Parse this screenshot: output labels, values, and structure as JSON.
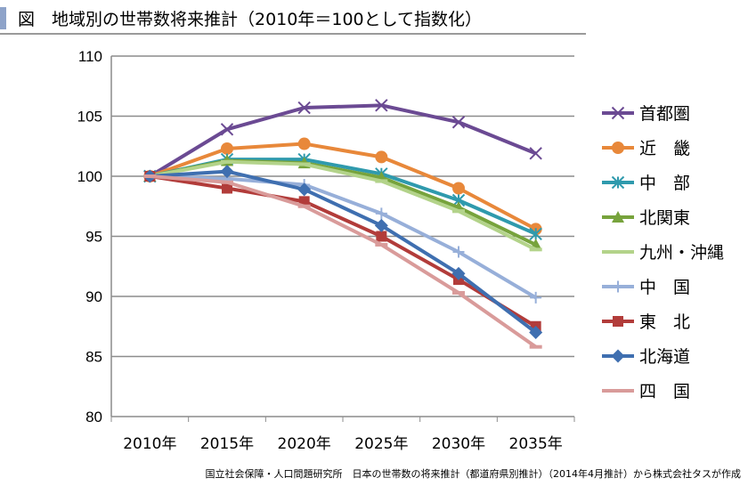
{
  "header": {
    "title": "図　地域別の世帯数将来推計（2010年＝100として指数化）"
  },
  "source": "国立社会保障・人口問題研究所　日本の世帯数の将来推計（都道府県別推計）（2014年4月推計）から株式会社タスが作成",
  "chart_data": {
    "type": "line",
    "title": "",
    "xlabel": "",
    "ylabel": "",
    "categories": [
      "2010年",
      "2015年",
      "2020年",
      "2025年",
      "2030年",
      "2035年"
    ],
    "ylim": [
      80,
      110
    ],
    "yticks": [
      80,
      85,
      90,
      95,
      100,
      105,
      110
    ],
    "grid": true,
    "legend": "right",
    "series": [
      {
        "name": "首都圏",
        "color": "#6b4a93",
        "marker": "x",
        "values": [
          100,
          103.9,
          105.7,
          105.9,
          104.5,
          101.9
        ]
      },
      {
        "name": "近　畿",
        "color": "#e8883a",
        "marker": "circle",
        "values": [
          100,
          102.3,
          102.7,
          101.6,
          99.0,
          95.6
        ]
      },
      {
        "name": "中　部",
        "color": "#2f9aad",
        "marker": "star",
        "values": [
          100,
          101.4,
          101.4,
          100.2,
          98.0,
          95.2
        ]
      },
      {
        "name": "北関東",
        "color": "#77a33c",
        "marker": "triangle",
        "values": [
          100,
          101.3,
          101.1,
          99.9,
          97.4,
          94.3
        ]
      },
      {
        "name": "九州・沖縄",
        "color": "#b3d38a",
        "marker": "dash",
        "values": [
          100,
          101.2,
          101.0,
          99.6,
          97.1,
          93.9
        ]
      },
      {
        "name": "中　国",
        "color": "#97afd9",
        "marker": "plus",
        "values": [
          100,
          99.8,
          99.3,
          96.9,
          93.7,
          89.9
        ]
      },
      {
        "name": "東　北",
        "color": "#b23c3a",
        "marker": "square",
        "values": [
          100,
          99.0,
          97.9,
          95.0,
          91.4,
          87.5
        ]
      },
      {
        "name": "北海道",
        "color": "#3f6fb0",
        "marker": "diamond",
        "values": [
          100,
          100.4,
          98.9,
          95.9,
          91.9,
          87.0
        ]
      },
      {
        "name": "四　国",
        "color": "#d99b9a",
        "marker": "dash",
        "values": [
          100,
          99.5,
          97.5,
          94.3,
          90.3,
          85.8
        ]
      }
    ]
  }
}
